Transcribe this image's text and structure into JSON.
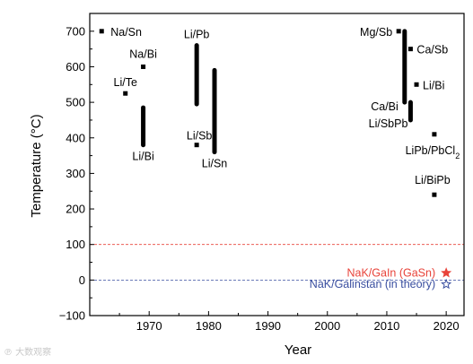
{
  "chart_data": {
    "type": "scatter",
    "title": "",
    "xlabel": "Year",
    "ylabel": "Temperature (°C)",
    "xlim": [
      1960,
      2023
    ],
    "ylim": [
      -100,
      750
    ],
    "x_ticks": [
      1970,
      1980,
      1990,
      2000,
      2010,
      2020
    ],
    "y_ticks": [
      -100,
      0,
      100,
      200,
      300,
      400,
      500,
      600,
      700
    ],
    "grid": false,
    "legend": "none",
    "series": [
      {
        "kind": "point",
        "color": "#000000",
        "points": [
          {
            "label": "Na/Sn",
            "x": 1962,
            "y": 700
          },
          {
            "label": "Na/Bi",
            "x": 1969,
            "y": 600
          },
          {
            "label": "Li/Te",
            "x": 1966,
            "y": 525
          },
          {
            "label": "Li/Sb",
            "x": 1978,
            "y": 380
          },
          {
            "label": "Mg/Sb",
            "x": 2012,
            "y": 700
          },
          {
            "label": "Ca/Sb",
            "x": 2014,
            "y": 650
          },
          {
            "label": "Li/Bi",
            "x": 2015,
            "y": 550
          },
          {
            "label": "LiPb/PbCl2",
            "x": 2018,
            "y": 410
          },
          {
            "label": "Li/BiPb",
            "x": 2018,
            "y": 240
          }
        ]
      },
      {
        "kind": "range",
        "color": "#000000",
        "points": [
          {
            "label": "Li/Bi",
            "x": 1969,
            "y_min": 380,
            "y_max": 485
          },
          {
            "label": "Li/Pb",
            "x": 1978,
            "y_min": 495,
            "y_max": 660
          },
          {
            "label": "Li/Sn",
            "x": 1981,
            "y_min": 360,
            "y_max": 590
          },
          {
            "label": "Ca/Bi",
            "x": 2013,
            "y_min": 500,
            "y_max": 700
          },
          {
            "label": "Li/SbPb",
            "x": 2014,
            "y_min": 450,
            "y_max": 500
          }
        ]
      },
      {
        "kind": "star",
        "color": "#e8433a",
        "filled": true,
        "points": [
          {
            "label": "NaK/GaIn (GaSn)",
            "x": 2020,
            "y": 20
          }
        ]
      },
      {
        "kind": "star",
        "color": "#3a4fa0",
        "filled": false,
        "points": [
          {
            "label": "NaK/Galinstan (in theory)",
            "x": 2020,
            "y": -12
          }
        ]
      }
    ],
    "reference_lines": [
      {
        "y": 100,
        "color": "#e8433a",
        "style": "dashed"
      },
      {
        "y": 0,
        "color": "#3a4fa0",
        "style": "dashed"
      }
    ]
  },
  "watermark": {
    "text": "℗ 大数观察"
  }
}
